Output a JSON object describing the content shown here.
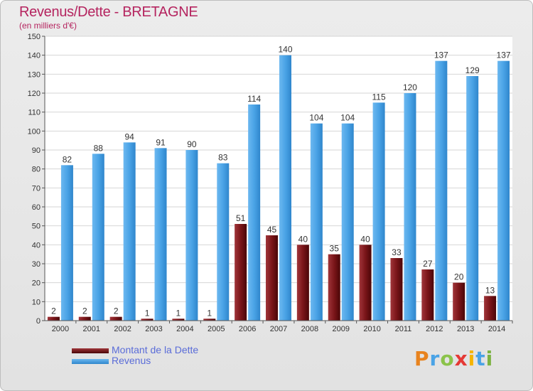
{
  "header": {
    "title": "Revenus/Dette - BRETAGNE",
    "subtitle": "(en milliers d'€)"
  },
  "legend": {
    "items": [
      {
        "label": "Montant de la Dette",
        "color": "#6b0f14"
      },
      {
        "label": "Revenus",
        "color": "#4aa3e6"
      }
    ]
  },
  "logo": {
    "text": "Proxiti",
    "colors": [
      "#e8831e",
      "#4aa3e6",
      "#8bc34a",
      "#e53935",
      "#f5b400",
      "#4aa3e6",
      "#7cb342"
    ]
  },
  "chart_data": {
    "type": "bar",
    "categories": [
      "2000",
      "2001",
      "2002",
      "2003",
      "2004",
      "2005",
      "2006",
      "2007",
      "2008",
      "2009",
      "2010",
      "2011",
      "2012",
      "2013",
      "2014"
    ],
    "series": [
      {
        "name": "Montant de la Dette",
        "color": "#6b0f14",
        "values": [
          2,
          2,
          2,
          1,
          1,
          1,
          51,
          45,
          40,
          35,
          40,
          33,
          27,
          20,
          13
        ]
      },
      {
        "name": "Revenus",
        "color": "#4aa3e6",
        "values": [
          82,
          88,
          94,
          91,
          90,
          83,
          114,
          140,
          104,
          104,
          115,
          120,
          137,
          129,
          137
        ]
      }
    ],
    "title": "Revenus/Dette - BRETAGNE",
    "subtitle": "(en milliers d'€)",
    "ylim": [
      0,
      150
    ],
    "yticks": [
      0,
      10,
      20,
      30,
      40,
      50,
      60,
      70,
      80,
      90,
      100,
      110,
      120,
      130,
      140,
      150
    ],
    "grid": true,
    "legend_position": "bottom-left"
  }
}
